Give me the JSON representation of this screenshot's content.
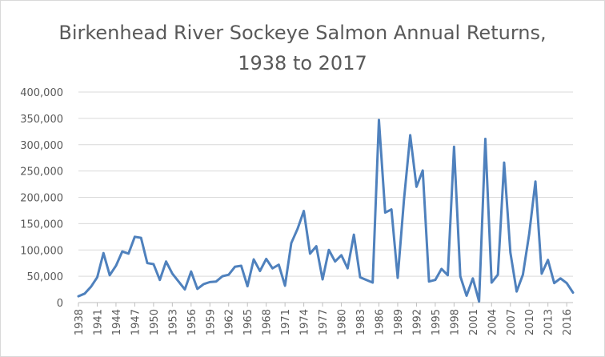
{
  "chart_data": {
    "type": "line",
    "title": "Birkenhead River Sockeye Salmon Annual Returns,",
    "subtitle": "1938 to 2017",
    "xlabel": "",
    "ylabel": "",
    "ylim": [
      0,
      400000
    ],
    "y_ticks": [
      "0",
      "50,000",
      "100,000",
      "150,000",
      "200,000",
      "250,000",
      "300,000",
      "350,000",
      "400,000"
    ],
    "x_tick_labels": [
      "1938",
      "1941",
      "1944",
      "1947",
      "1950",
      "1953",
      "1956",
      "1959",
      "1962",
      "1965",
      "1968",
      "1971",
      "1974",
      "1977",
      "1980",
      "1983",
      "1986",
      "1989",
      "1992",
      "1995",
      "1998",
      "2001",
      "2004",
      "2007",
      "2010",
      "2013",
      "2016"
    ],
    "grid": true,
    "legend": "none",
    "line_color": "#4f81bd",
    "series": [
      {
        "x": [
          1938,
          1939,
          1940,
          1941,
          1942,
          1943,
          1944,
          1945,
          1946,
          1947,
          1948,
          1949,
          1950,
          1951,
          1952,
          1953,
          1954,
          1955,
          1956,
          1957,
          1958,
          1959,
          1960,
          1961,
          1962,
          1963,
          1964,
          1965,
          1966,
          1967,
          1968,
          1969,
          1970,
          1971,
          1972,
          1973,
          1974,
          1975,
          1976,
          1977,
          1978,
          1979,
          1980,
          1981,
          1982,
          1983,
          1984,
          1985,
          1986,
          1987,
          1988,
          1989,
          1990,
          1991,
          1992,
          1993,
          1994,
          1995,
          1996,
          1997,
          1998,
          1999,
          2000,
          2001,
          2002,
          2003,
          2004,
          2005,
          2006,
          2007,
          2008,
          2009,
          2010,
          2011,
          2012,
          2013,
          2014,
          2015,
          2016,
          2017
        ],
        "values": [
          12000,
          17000,
          30000,
          48000,
          94000,
          52000,
          70000,
          97000,
          93000,
          125000,
          123000,
          75000,
          73000,
          43000,
          78000,
          55000,
          40000,
          25000,
          59000,
          26000,
          35000,
          39000,
          40000,
          50000,
          53000,
          68000,
          70000,
          31000,
          82000,
          60000,
          83000,
          65000,
          72000,
          32000,
          113000,
          140000,
          174000,
          93000,
          107000,
          44000,
          100000,
          78000,
          90000,
          65000,
          129000,
          48000,
          43000,
          38000,
          347000,
          171000,
          177000,
          47000,
          195000,
          318000,
          220000,
          251000,
          40000,
          43000,
          64000,
          52000,
          296000,
          50000,
          13000,
          46000,
          2000,
          311000,
          38000,
          53000,
          266000,
          95000,
          21000,
          53000,
          130000,
          230000,
          55000,
          81000,
          37000,
          46000,
          37000,
          19000
        ]
      }
    ]
  }
}
